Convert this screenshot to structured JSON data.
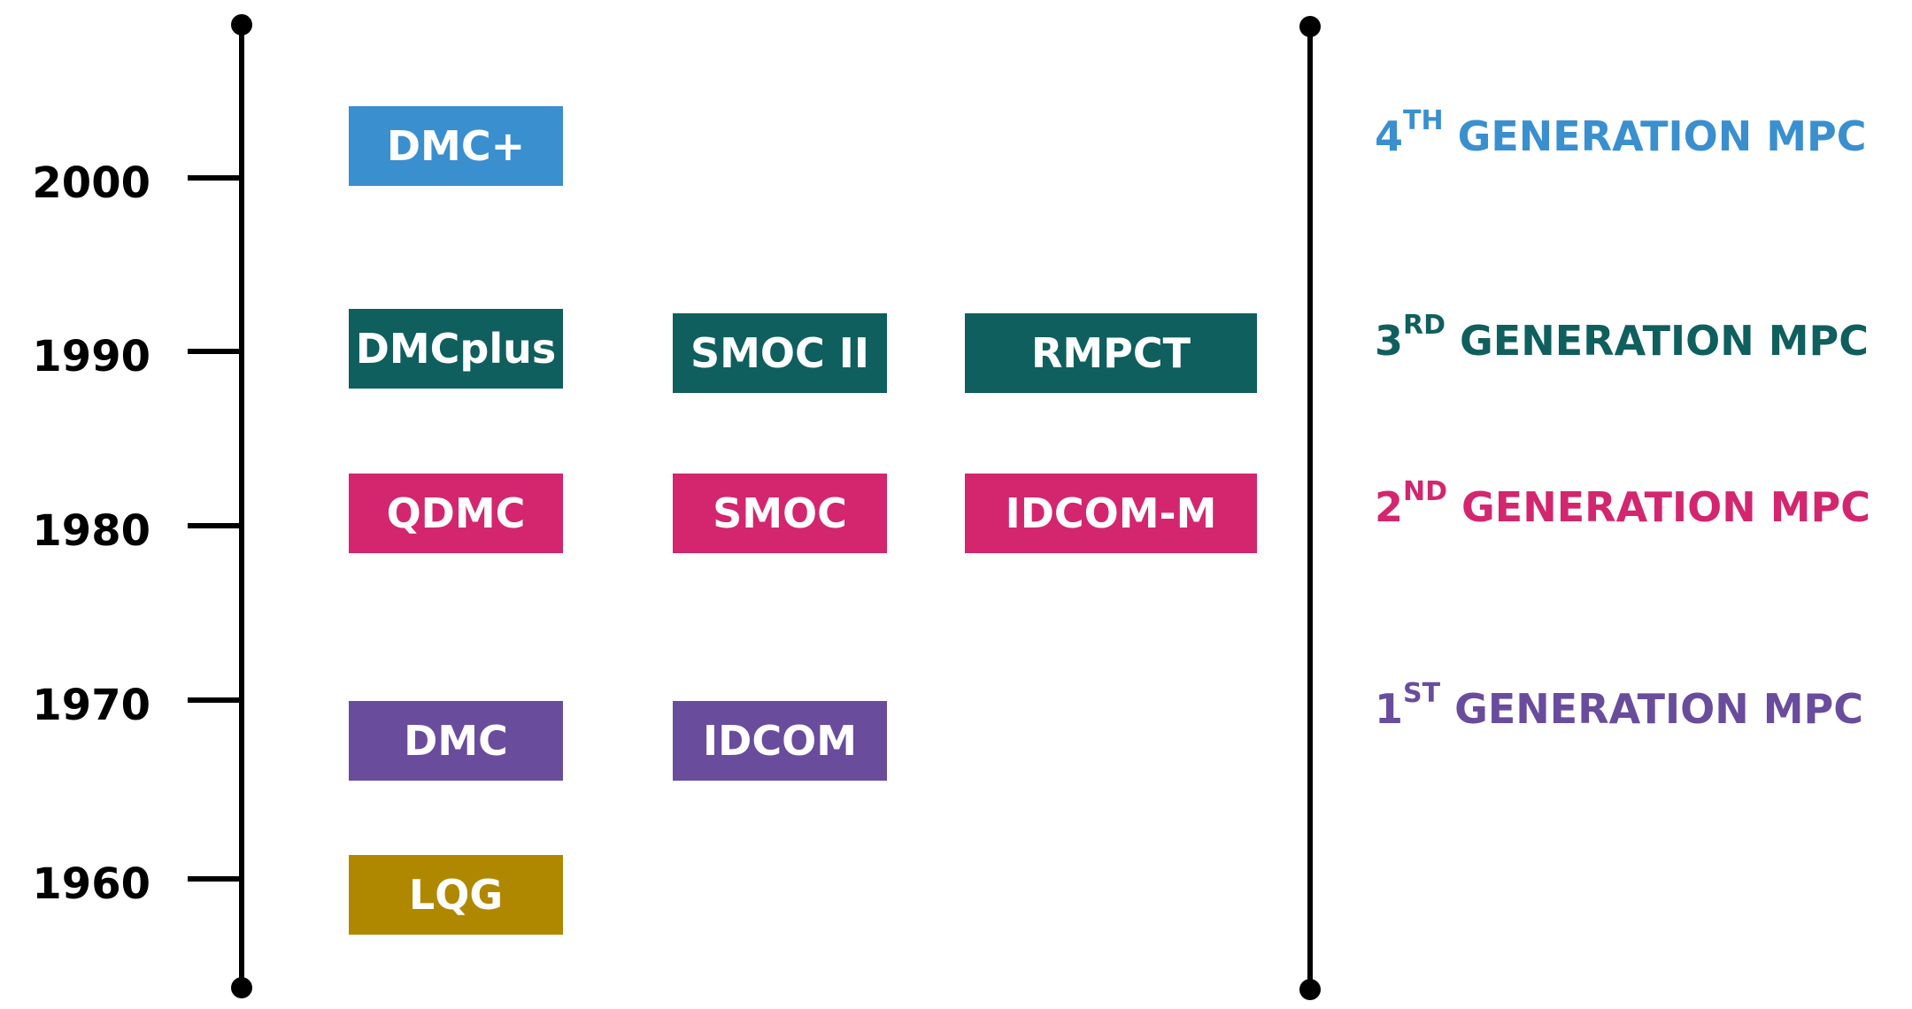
{
  "colors": {
    "gen4": "#3a8fcf",
    "gen3": "#0f5f5e",
    "gen2": "#d3266f",
    "gen1": "#6a4c9c",
    "lqg": "#b08800"
  },
  "years": [
    "2000",
    "1990",
    "1980",
    "1970",
    "1960"
  ],
  "methods": {
    "dmc_plus_sign": "DMC+",
    "dmcplus": "DMCplus",
    "smoc_ii": "SMOC II",
    "rmpct": "RMPCT",
    "qdmc": "QDMC",
    "smoc": "SMOC",
    "idcom_m": "IDCOM-M",
    "dmc": "DMC",
    "idcom": "IDCOM",
    "lqg": "LQG"
  },
  "generations": {
    "gen4": {
      "number": "4",
      "suffix": "TH",
      "label": " GENERATION MPC"
    },
    "gen3": {
      "number": "3",
      "suffix": "RD",
      "label": " GENERATION MPC"
    },
    "gen2": {
      "number": "2",
      "suffix": "ND",
      "label": " GENERATION MPC"
    },
    "gen1": {
      "number": "1",
      "suffix": "ST",
      "label": " GENERATION MPC"
    }
  }
}
